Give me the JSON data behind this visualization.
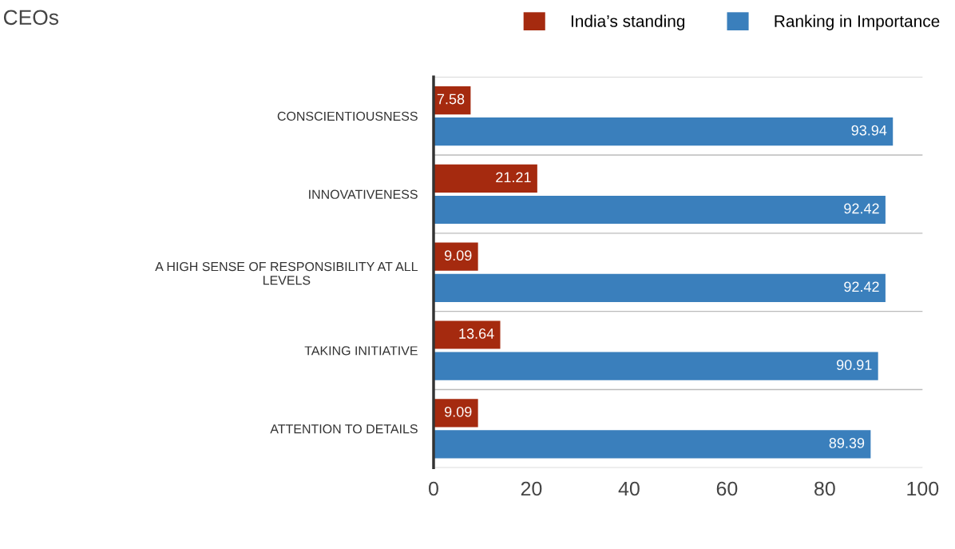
{
  "chart_data": {
    "type": "bar",
    "orientation": "horizontal",
    "title": "CEOs",
    "categories": [
      "CONSCIENTIOUSNESS",
      "INNOVATIVENESS",
      "A HIGH SENSE OF RESPONSIBILITY AT ALL\nLEVELS",
      "TAKING INITIATIVE",
      "ATTENTION TO DETAILS"
    ],
    "series": [
      {
        "name": "India’s standing",
        "color": "#a52a0f",
        "values": [
          7.58,
          21.21,
          9.09,
          13.64,
          9.09
        ]
      },
      {
        "name": "Ranking in Importance",
        "color": "#3a7fbc",
        "values": [
          93.94,
          92.42,
          92.42,
          90.91,
          89.39
        ]
      }
    ],
    "xlim": [
      0,
      100
    ],
    "xticks": [
      0,
      20,
      40,
      60,
      80,
      100
    ],
    "grid": "y",
    "legend": "top right",
    "data_labels": true
  }
}
